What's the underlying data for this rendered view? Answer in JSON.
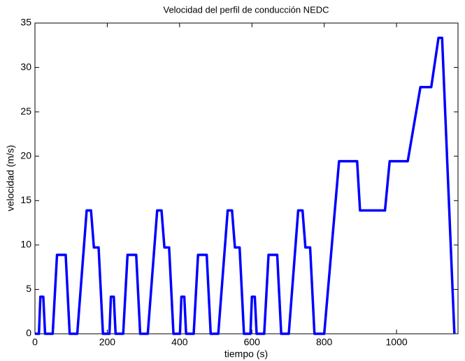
{
  "chart_data": {
    "type": "line",
    "title": "Velocidad del perfil de conducción NEDC",
    "xlabel": "tiempo (s)",
    "ylabel": "velocidad (m/s)",
    "x": [
      0,
      11,
      15,
      23,
      28,
      49,
      61,
      85,
      96,
      117,
      143,
      155,
      163,
      176,
      188,
      195,
      206,
      210,
      218,
      223,
      244,
      256,
      280,
      291,
      312,
      338,
      350,
      358,
      371,
      383,
      390,
      401,
      405,
      413,
      418,
      439,
      451,
      475,
      486,
      507,
      533,
      545,
      553,
      566,
      578,
      585,
      596,
      600,
      608,
      613,
      634,
      646,
      670,
      681,
      702,
      728,
      740,
      748,
      761,
      773,
      780,
      800,
      841,
      891,
      899,
      968,
      981,
      1031,
      1066,
      1096,
      1116,
      1126,
      1160
    ],
    "series": [
      {
        "name": "velocidad",
        "color": "#0000ff",
        "values": [
          0,
          0,
          4.17,
          4.17,
          0,
          0,
          8.89,
          8.89,
          0,
          0,
          13.89,
          13.89,
          9.72,
          9.72,
          0,
          0,
          0,
          4.17,
          4.17,
          0,
          0,
          8.89,
          8.89,
          0,
          0,
          13.89,
          13.89,
          9.72,
          9.72,
          0,
          0,
          0,
          4.17,
          4.17,
          0,
          0,
          8.89,
          8.89,
          0,
          0,
          13.89,
          13.89,
          9.72,
          9.72,
          0,
          0,
          0,
          4.17,
          4.17,
          0,
          0,
          8.89,
          8.89,
          0,
          0,
          13.89,
          13.89,
          9.72,
          9.72,
          0,
          0,
          0,
          19.44,
          19.44,
          13.89,
          13.89,
          19.44,
          19.44,
          27.78,
          27.78,
          33.33,
          33.33,
          0
        ]
      }
    ],
    "xlim": [
      0,
      1170
    ],
    "xticks": [
      0,
      200,
      400,
      600,
      800,
      1000
    ],
    "ylim": [
      0,
      35
    ],
    "yticks": [
      0,
      5,
      10,
      15,
      20,
      25,
      30,
      35
    ],
    "grid": false
  }
}
